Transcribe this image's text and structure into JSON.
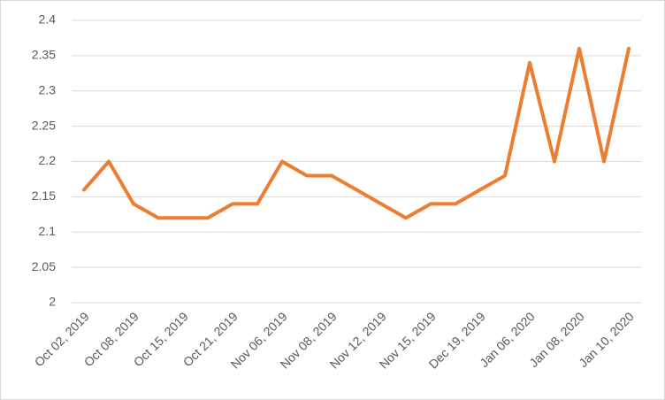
{
  "chart_data": {
    "type": "line",
    "categories": [
      "Oct 02, 2019",
      null,
      "Oct 08, 2019",
      null,
      "Oct 15, 2019",
      null,
      "Oct 21, 2019",
      null,
      "Nov 06, 2019",
      null,
      "Nov 08, 2019",
      null,
      "Nov 12, 2019",
      null,
      "Nov 15, 2019",
      null,
      "Dec 19, 2019",
      null,
      "Jan 06, 2020",
      null,
      "Jan 08, 2020",
      null,
      "Jan 10, 2020"
    ],
    "values": [
      2.16,
      2.2,
      2.14,
      2.12,
      2.12,
      2.12,
      2.14,
      2.14,
      2.2,
      2.18,
      2.18,
      2.16,
      2.14,
      2.12,
      2.14,
      2.14,
      2.16,
      2.18,
      2.34,
      2.2,
      2.36,
      2.2,
      2.36
    ],
    "color": "#ed7d31",
    "ylim": [
      2,
      2.4
    ],
    "yticks": [
      2,
      2.05,
      2.1,
      2.15,
      2.2,
      2.25,
      2.3,
      2.35,
      2.4
    ],
    "grid": true
  }
}
